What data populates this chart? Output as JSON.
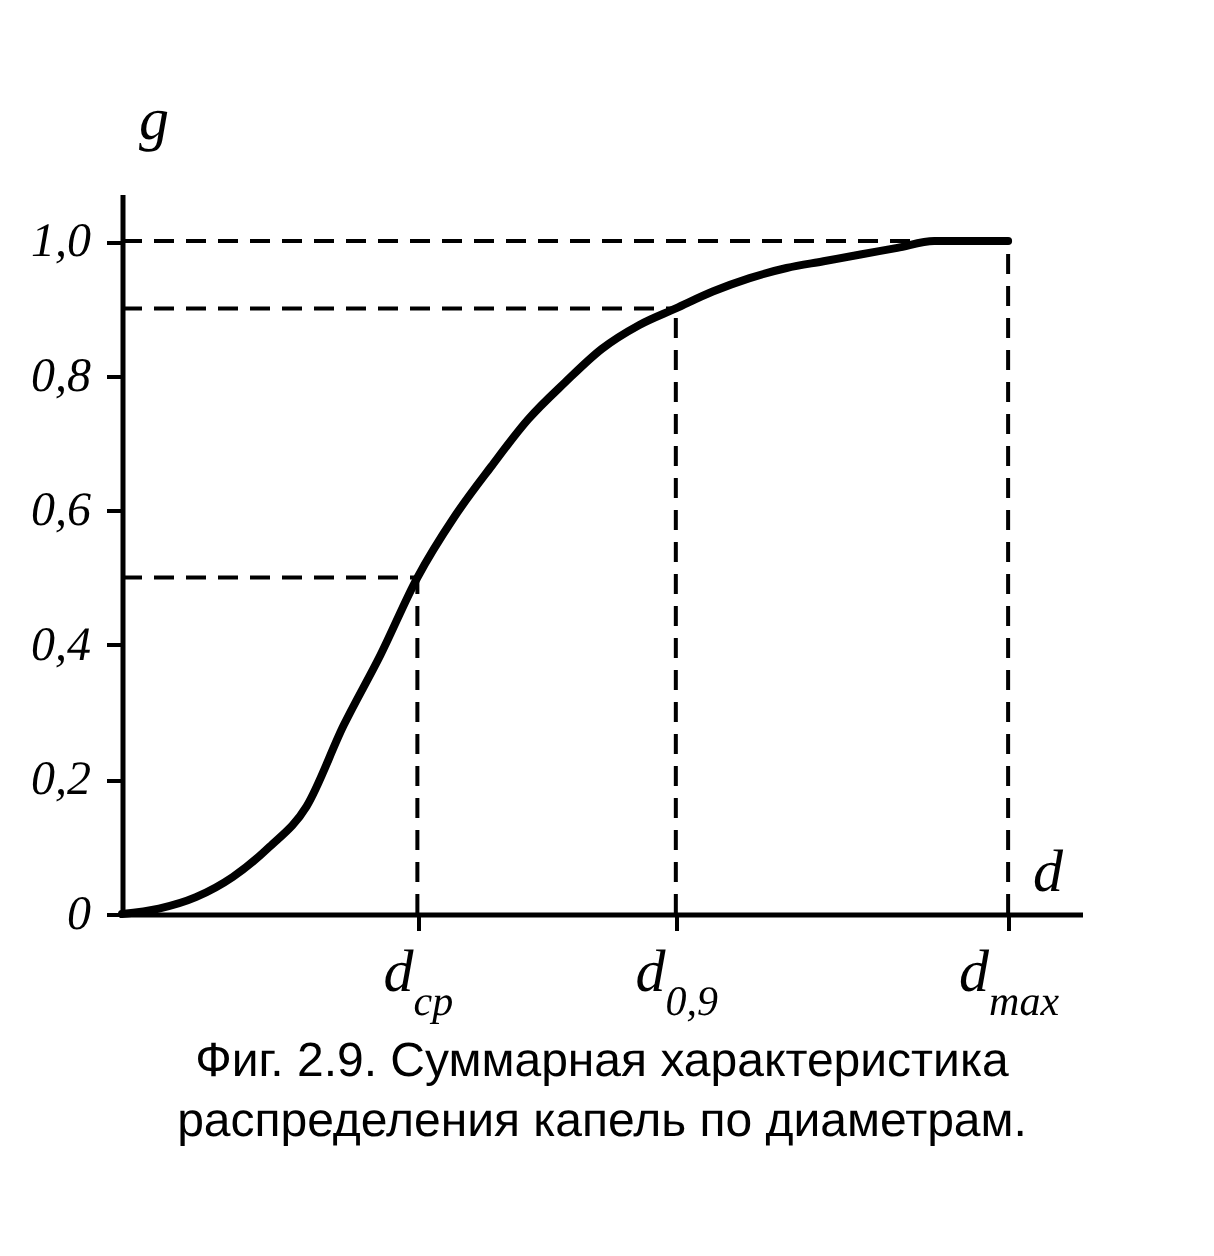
{
  "chart_data": {
    "type": "line",
    "xlabel": "d",
    "ylabel": "g",
    "categories": [
      null,
      null,
      null,
      null,
      null,
      null,
      null,
      null,
      "d$_{ср}$",
      null,
      null,
      null,
      null,
      null,
      null,
      "d$_{0,9}$",
      null,
      null,
      null,
      null,
      null,
      null,
      null,
      null,
      "d$_{max}$",
      null,
      null
    ],
    "series": [
      {
        "color": "#000000",
        "values": [
          0,
          0.008,
          0.025,
          0.055,
          0.1,
          0.16,
          0.28,
          0.385,
          0.5,
          0.59,
          0.665,
          0.735,
          0.79,
          0.84,
          0.875,
          0.9,
          0.925,
          0.945,
          0.96,
          0.97,
          0.98,
          0.99,
          1.0,
          1.0,
          1.0,
          null,
          null
        ]
      }
    ],
    "ylim": [
      0,
      1.07
    ],
    "yticks": [
      0,
      {
        "value": 0.2,
        "label": "0,2"
      },
      {
        "value": 0.4,
        "label": "0,4"
      },
      {
        "value": 0.6,
        "label": "0,6"
      },
      {
        "value": 0.8,
        "label": "0,8"
      },
      {
        "value": 1.0,
        "label": "1,0"
      }
    ],
    "ref_lines": [
      {
        "axis": "y",
        "value": 0.5,
        "line_style": "dashed"
      },
      {
        "axis": "y",
        "value": 0.9,
        "line_style": "dashed"
      },
      {
        "axis": "y",
        "value": 1.0,
        "line_style": "dashed"
      },
      {
        "axis": "x",
        "value": "d$_{ср}$",
        "line_style": "dashed"
      },
      {
        "axis": "x",
        "value": "d$_{0,9}$",
        "line_style": "dashed"
      },
      {
        "axis": "x",
        "value": "d$_{max}$",
        "line_style": "dashed"
      }
    ],
    "annotations": [
      "Фиг. 2.9. Суммарная характеристика распределения капель по диаметрам."
    ],
    "grid": false,
    "legend": false,
    "marker": "none",
    "line_style": "solid"
  }
}
